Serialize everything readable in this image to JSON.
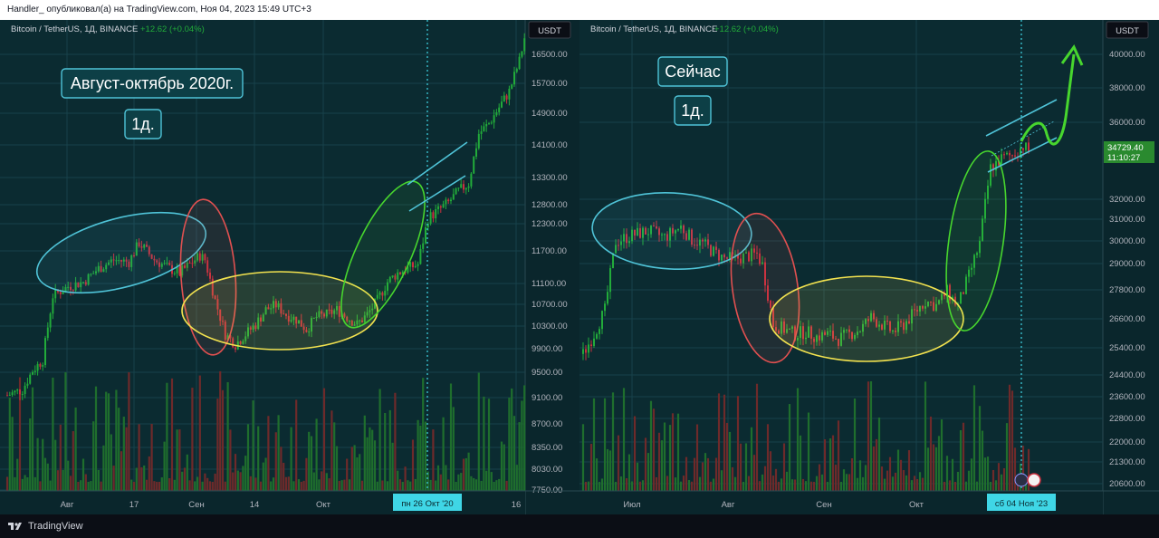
{
  "header": {
    "text": "Handler_ опубликовал(а) на TradingView.com, Ноя 04, 2023 15:49 UTC+3"
  },
  "footer": {
    "brand": "TradingView"
  },
  "colors": {
    "bg": "#0b2b31",
    "grid": "#17414a",
    "up": "#22ab3a",
    "down": "#c9303f",
    "vol_up": "#1f6e2d",
    "vol_down": "#6e2a2a",
    "cyan": "#4fc3d7",
    "red": "#e05050",
    "yellow": "#f2e24f",
    "green": "#47d62e",
    "text": "#d1d4dc",
    "scale_text": "#b2b5be"
  },
  "chart_data": [
    {
      "type": "candlestick",
      "symbol": "Bitcoin / TetherUS, 1Д, BINANCE",
      "change": "+12.62 (+0.04%)",
      "currency": "USDT",
      "ylim": [
        7600,
        18300
      ],
      "scale": "log",
      "y_ticks": [
        "16500.00",
        "15700.00",
        "14900.00",
        "14100.00",
        "13300.00",
        "12800.00",
        "12300.00",
        "11700.00",
        "11100.00",
        "10700.00",
        "10300.00",
        "9900.00",
        "9500.00",
        "9100.00",
        "8700.00",
        "8350.00",
        "8030.00",
        "7750.00"
      ],
      "x_ticks": [
        "Авг",
        "17",
        "Сен",
        "14",
        "Окт",
        "16"
      ],
      "crosshair_label": "пн 26 Окт '20",
      "annotations": [
        "Август-октябрь 2020г.",
        "1д."
      ],
      "price_path": [
        [
          0,
          9150
        ],
        [
          6,
          9250
        ],
        [
          10,
          9600
        ],
        [
          14,
          9800
        ],
        [
          18,
          11100
        ],
        [
          24,
          11300
        ],
        [
          30,
          11400
        ],
        [
          36,
          11700
        ],
        [
          42,
          11900
        ],
        [
          48,
          11850
        ],
        [
          52,
          12300
        ],
        [
          58,
          11900
        ],
        [
          64,
          11700
        ],
        [
          68,
          11600
        ],
        [
          72,
          11800
        ],
        [
          76,
          12000
        ],
        [
          78,
          11900
        ],
        [
          82,
          11000
        ],
        [
          86,
          10300
        ],
        [
          90,
          10100
        ],
        [
          94,
          10300
        ],
        [
          98,
          10500
        ],
        [
          102,
          10800
        ],
        [
          106,
          10900
        ],
        [
          110,
          10700
        ],
        [
          114,
          10600
        ],
        [
          118,
          10400
        ],
        [
          122,
          10650
        ],
        [
          126,
          10700
        ],
        [
          130,
          10800
        ],
        [
          134,
          10650
        ],
        [
          138,
          10500
        ],
        [
          142,
          10700
        ],
        [
          146,
          11000
        ],
        [
          150,
          11400
        ],
        [
          154,
          11600
        ],
        [
          158,
          11700
        ],
        [
          162,
          11800
        ],
        [
          166,
          12900
        ],
        [
          170,
          13100
        ],
        [
          174,
          13300
        ],
        [
          178,
          13600
        ],
        [
          182,
          13800
        ],
        [
          186,
          15200
        ],
        [
          190,
          15500
        ],
        [
          194,
          16000
        ],
        [
          198,
          16500
        ],
        [
          202,
          17500
        ],
        [
          204,
          18300
        ]
      ]
    },
    {
      "type": "candlestick",
      "symbol": "Bitcoin / TetherUS, 1Д, BINANCE",
      "change": "+12.62 (+0.04%)",
      "currency": "USDT",
      "ylim": [
        20300,
        41500
      ],
      "scale": "log",
      "y_ticks": [
        "40000.00",
        "38000.00",
        "36000.00",
        "32000.00",
        "31000.00",
        "30000.00",
        "29000.00",
        "27800.00",
        "26600.00",
        "25400.00",
        "24400.00",
        "23600.00",
        "22800.00",
        "22000.00",
        "21300.00",
        "20600.00"
      ],
      "x_ticks": [
        "Июл",
        "Авг",
        "Сен",
        "Окт"
      ],
      "last_price": "34729.40",
      "last_time": "11:10:27",
      "crosshair_label": "сб 04 Ноя '23",
      "annotations": [
        "Сейчас",
        "1д."
      ],
      "price_path": [
        [
          0,
          25200
        ],
        [
          4,
          26000
        ],
        [
          8,
          27000
        ],
        [
          12,
          30100
        ],
        [
          18,
          30400
        ],
        [
          24,
          30600
        ],
        [
          30,
          30300
        ],
        [
          36,
          30800
        ],
        [
          40,
          30200
        ],
        [
          44,
          30000
        ],
        [
          48,
          29600
        ],
        [
          52,
          29300
        ],
        [
          56,
          29300
        ],
        [
          60,
          29400
        ],
        [
          64,
          29500
        ],
        [
          66,
          29000
        ],
        [
          70,
          26400
        ],
        [
          74,
          26200
        ],
        [
          78,
          26000
        ],
        [
          82,
          26100
        ],
        [
          86,
          25900
        ],
        [
          90,
          26000
        ],
        [
          94,
          25800
        ],
        [
          98,
          26000
        ],
        [
          102,
          26200
        ],
        [
          106,
          26700
        ],
        [
          110,
          26400
        ],
        [
          114,
          26100
        ],
        [
          118,
          26400
        ],
        [
          122,
          26900
        ],
        [
          126,
          27400
        ],
        [
          130,
          27200
        ],
        [
          134,
          27800
        ],
        [
          138,
          27200
        ],
        [
          142,
          28500
        ],
        [
          146,
          30000
        ],
        [
          150,
          33800
        ],
        [
          154,
          34300
        ],
        [
          158,
          34500
        ],
        [
          162,
          35000
        ],
        [
          164,
          34729
        ]
      ],
      "projection": "green arrow up toward 40000"
    }
  ]
}
